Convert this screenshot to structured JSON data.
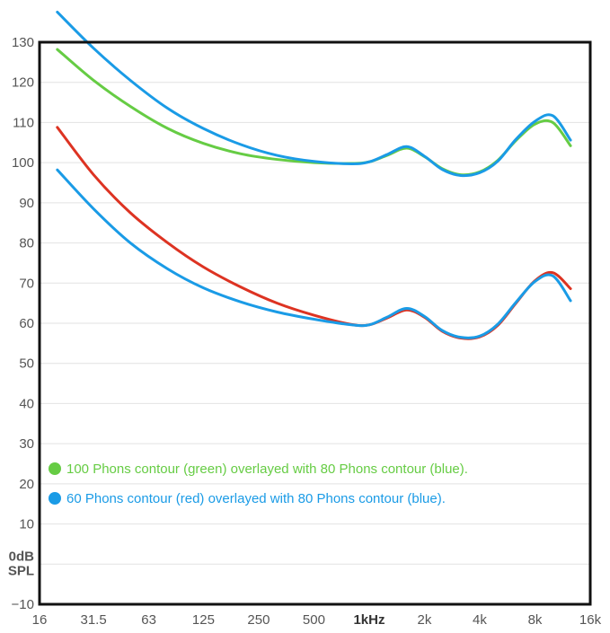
{
  "chart_data": {
    "type": "line",
    "title": "",
    "xlabel": "",
    "ylabel": "0dB SPL",
    "x_scale": "log",
    "xlim": [
      16,
      16000
    ],
    "ylim": [
      -10,
      130
    ],
    "x_ticks": [
      16,
      31.5,
      63,
      125,
      250,
      500,
      1000,
      2000,
      4000,
      8000,
      16000
    ],
    "x_tick_labels": [
      "16",
      "31.5",
      "63",
      "125",
      "250",
      "500",
      "1kHz",
      "2k",
      "4k",
      "8k",
      "16k"
    ],
    "y_ticks": [
      -10,
      0,
      10,
      20,
      30,
      40,
      50,
      60,
      70,
      80,
      90,
      100,
      110,
      120,
      130
    ],
    "y_tick_labels": [
      "−10",
      "",
      "10",
      "20",
      "30",
      "40",
      "50",
      "60",
      "70",
      "80",
      "90",
      "100",
      "110",
      "120",
      "130"
    ],
    "grid": "horizontal",
    "legend_placement": "bottom-left",
    "legend": [
      {
        "text": "100 Phons contour (green) overlayed with 80 Phons contour (blue).",
        "color": "#66cc44"
      },
      {
        "text": "60 Phons contour (red) overlayed with 80 Phons contour (blue).",
        "color": "#1a9be6"
      }
    ],
    "series": [
      {
        "color": "#66cc44",
        "x": [
          20,
          31.5,
          50,
          80,
          125,
          200,
          315,
          500,
          800,
          1000,
          1250,
          1600,
          2000,
          2500,
          3150,
          4000,
          5000,
          6300,
          8000,
          10000,
          12500
        ],
        "y": [
          128.2,
          120.5,
          114,
          108.5,
          104.8,
          102.2,
          100.8,
          100,
          99.8,
          100.2,
          101.8,
          103.6,
          101.5,
          98.5,
          97,
          97.7,
          100.5,
          105.5,
          109.6,
          110,
          104.2
        ]
      },
      {
        "color": "#1a9be6",
        "x": [
          20,
          31.5,
          50,
          80,
          125,
          200,
          315,
          500,
          800,
          1000,
          1250,
          1600,
          2000,
          2500,
          3150,
          4000,
          5000,
          6300,
          8000,
          10000,
          12500
        ],
        "y": [
          137.5,
          128.5,
          120.5,
          113.5,
          108.5,
          104.5,
          101.8,
          100.3,
          99.7,
          100.2,
          102,
          104,
          101.6,
          98.3,
          96.8,
          97.5,
          100.3,
          105.8,
          110.3,
          111.7,
          105.6
        ]
      },
      {
        "color": "#dd3322",
        "x": [
          20,
          31.5,
          50,
          80,
          125,
          200,
          315,
          500,
          800,
          1000,
          1250,
          1600,
          2000,
          2500,
          3150,
          4000,
          5000,
          6300,
          8000,
          10000,
          12500
        ],
        "y": [
          108.8,
          97,
          87.5,
          80,
          74,
          69,
          65,
          62,
          59.7,
          59.6,
          61.3,
          63.3,
          61.5,
          58,
          56.3,
          56.6,
          59.4,
          65,
          70.6,
          72.6,
          68.6
        ]
      },
      {
        "color": "#1a9be6",
        "x": [
          20,
          31.5,
          50,
          80,
          125,
          200,
          315,
          500,
          800,
          1000,
          1250,
          1600,
          2000,
          2500,
          3150,
          4000,
          5000,
          6300,
          8000,
          10000,
          12500
        ],
        "y": [
          98.2,
          88.5,
          80,
          73.5,
          68.8,
          65.3,
          62.8,
          61,
          59.6,
          59.6,
          61.5,
          63.7,
          61.7,
          58.2,
          56.5,
          56.8,
          59.7,
          65.2,
          70.4,
          71.8,
          65.6
        ]
      }
    ]
  }
}
